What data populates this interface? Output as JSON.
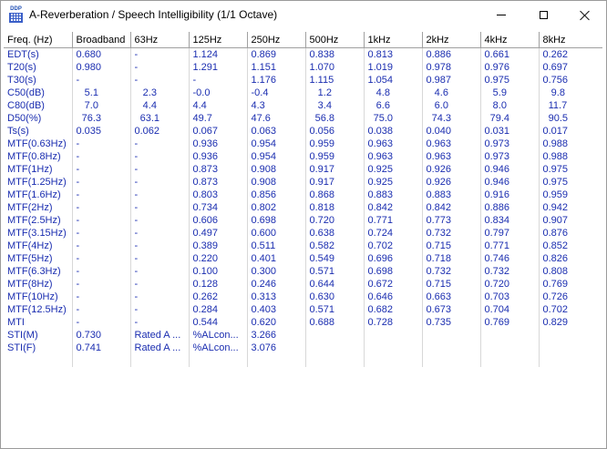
{
  "window": {
    "title": "A-Reverberation / Speech Intelligibility (1/1 Octave)",
    "app_icon_text": "DDP",
    "accent": "#1a2db0"
  },
  "table": {
    "columns": [
      "Freq. (Hz)",
      "Broadband",
      "63Hz",
      "125Hz",
      "250Hz",
      "500Hz",
      "1kHz",
      "2kHz",
      "4kHz",
      "8kHz"
    ],
    "rows": [
      [
        "EDT(s)",
        "0.680",
        "-",
        "1.124",
        "0.869",
        "0.838",
        "0.813",
        "0.886",
        "0.661",
        "0.262"
      ],
      [
        "T20(s)",
        "0.980",
        "-",
        "1.291",
        "1.151",
        "1.070",
        "1.019",
        "0.978",
        "0.976",
        "0.697"
      ],
      [
        "T30(s)",
        "-",
        "-",
        "-",
        "1.176",
        "1.115",
        "1.054",
        "0.987",
        "0.975",
        "0.756"
      ],
      [
        "C50(dB)",
        "   5.1",
        "   2.3",
        "-0.0",
        "-0.4",
        "   1.2",
        "   4.8",
        "   4.6",
        "   5.9",
        "   9.8"
      ],
      [
        "C80(dB)",
        "   7.0",
        "   4.4",
        "4.4",
        "4.3",
        "   3.4",
        "   6.6",
        "   6.0",
        "   8.0",
        "  11.7"
      ],
      [
        "D50(%)",
        "  76.3",
        "  63.1",
        "49.7",
        "47.6",
        "  56.8",
        "  75.0",
        "  74.3",
        "  79.4",
        "  90.5"
      ],
      [
        "Ts(s)",
        "0.035",
        "0.062",
        "0.067",
        "0.063",
        "0.056",
        "0.038",
        "0.040",
        "0.031",
        "0.017"
      ],
      [
        "MTF(0.63Hz)",
        "-",
        "-",
        "0.936",
        "0.954",
        "0.959",
        "0.963",
        "0.963",
        "0.973",
        "0.988"
      ],
      [
        "MTF(0.8Hz)",
        "-",
        "-",
        "0.936",
        "0.954",
        "0.959",
        "0.963",
        "0.963",
        "0.973",
        "0.988"
      ],
      [
        "MTF(1Hz)",
        "-",
        "-",
        "0.873",
        "0.908",
        "0.917",
        "0.925",
        "0.926",
        "0.946",
        "0.975"
      ],
      [
        "MTF(1.25Hz)",
        "-",
        "-",
        "0.873",
        "0.908",
        "0.917",
        "0.925",
        "0.926",
        "0.946",
        "0.975"
      ],
      [
        "MTF(1.6Hz)",
        "-",
        "-",
        "0.803",
        "0.856",
        "0.868",
        "0.883",
        "0.883",
        "0.916",
        "0.959"
      ],
      [
        "MTF(2Hz)",
        "-",
        "-",
        "0.734",
        "0.802",
        "0.818",
        "0.842",
        "0.842",
        "0.886",
        "0.942"
      ],
      [
        "MTF(2.5Hz)",
        "-",
        "-",
        "0.606",
        "0.698",
        "0.720",
        "0.771",
        "0.773",
        "0.834",
        "0.907"
      ],
      [
        "MTF(3.15Hz)",
        "-",
        "-",
        "0.497",
        "0.600",
        "0.638",
        "0.724",
        "0.732",
        "0.797",
        "0.876"
      ],
      [
        "MTF(4Hz)",
        "-",
        "-",
        "0.389",
        "0.511",
        "0.582",
        "0.702",
        "0.715",
        "0.771",
        "0.852"
      ],
      [
        "MTF(5Hz)",
        "-",
        "-",
        "0.220",
        "0.401",
        "0.549",
        "0.696",
        "0.718",
        "0.746",
        "0.826"
      ],
      [
        "MTF(6.3Hz)",
        "-",
        "-",
        "0.100",
        "0.300",
        "0.571",
        "0.698",
        "0.732",
        "0.732",
        "0.808"
      ],
      [
        "MTF(8Hz)",
        "-",
        "-",
        "0.128",
        "0.246",
        "0.644",
        "0.672",
        "0.715",
        "0.720",
        "0.769"
      ],
      [
        "MTF(10Hz)",
        "-",
        "-",
        "0.262",
        "0.313",
        "0.630",
        "0.646",
        "0.663",
        "0.703",
        "0.726"
      ],
      [
        "MTF(12.5Hz)",
        "-",
        "-",
        "0.284",
        "0.403",
        "0.571",
        "0.682",
        "0.673",
        "0.704",
        "0.702"
      ],
      [
        "MTI",
        "-",
        "-",
        "0.544",
        "0.620",
        "0.688",
        "0.728",
        "0.735",
        "0.769",
        "0.829"
      ],
      [
        "STI(M)",
        "0.730",
        "Rated A ...",
        "%ALcon...",
        "3.266",
        "",
        "",
        "",
        "",
        ""
      ],
      [
        "STI(F)",
        "0.741",
        "Rated A ...",
        "%ALcon...",
        "3.076",
        "",
        "",
        "",
        "",
        ""
      ]
    ]
  }
}
